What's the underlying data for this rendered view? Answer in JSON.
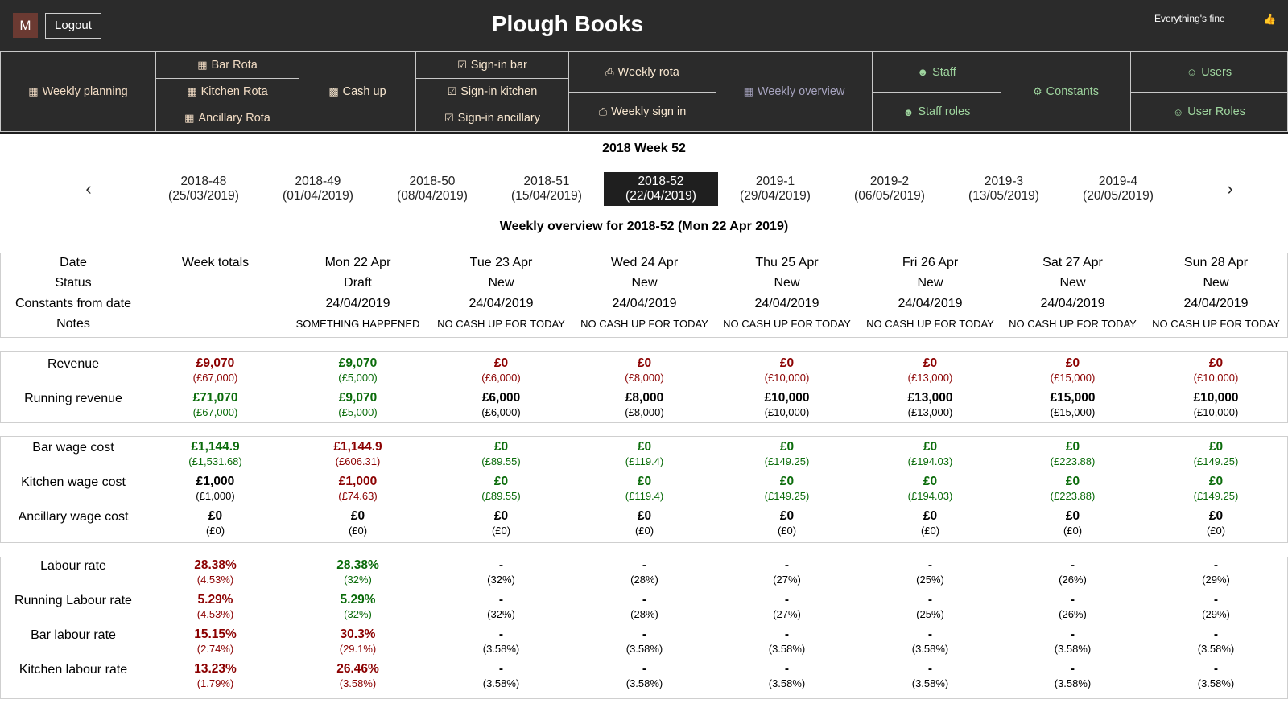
{
  "header": {
    "avatar_letter": "M",
    "logout_label": "Logout",
    "app_title": "Plough Books",
    "status_text": "Everything's fine",
    "status_icon": "thumbs-up-icon"
  },
  "nav": {
    "weekly_planning": "Weekly planning",
    "bar_rota": "Bar Rota",
    "kitchen_rota": "Kitchen Rota",
    "ancillary_rota": "Ancillary Rota",
    "cash_up": "Cash up",
    "sign_in_bar": "Sign-in bar",
    "sign_in_kitchen": "Sign-in kitchen",
    "sign_in_ancillary": "Sign-in ancillary",
    "weekly_rota": "Weekly rota",
    "weekly_sign_in": "Weekly sign in",
    "weekly_overview": "Weekly overview",
    "staff": "Staff",
    "staff_roles": "Staff roles",
    "constants": "Constants",
    "users": "Users",
    "user_roles": "User Roles"
  },
  "week_heading": "2018 Week 52",
  "weeks": [
    {
      "code": "2018-48",
      "date": "(25/03/2019)"
    },
    {
      "code": "2018-49",
      "date": "(01/04/2019)"
    },
    {
      "code": "2018-50",
      "date": "(08/04/2019)"
    },
    {
      "code": "2018-51",
      "date": "(15/04/2019)"
    },
    {
      "code": "2018-52",
      "date": "(22/04/2019)"
    },
    {
      "code": "2019-1",
      "date": "(29/04/2019)"
    },
    {
      "code": "2019-2",
      "date": "(06/05/2019)"
    },
    {
      "code": "2019-3",
      "date": "(13/05/2019)"
    },
    {
      "code": "2019-4",
      "date": "(20/05/2019)"
    }
  ],
  "active_week_index": 4,
  "overview_title": "Weekly overview for 2018-52 (Mon 22 Apr 2019)",
  "info": {
    "labels": [
      "Date",
      "Status",
      "Constants from date",
      "Notes"
    ],
    "columns": [
      {
        "date": "Week totals",
        "status": "",
        "constants": "",
        "notes": ""
      },
      {
        "date": "Mon 22 Apr",
        "status": "Draft",
        "constants": "24/04/2019",
        "notes": "SOMETHING HAPPENED"
      },
      {
        "date": "Tue 23 Apr",
        "status": "New",
        "constants": "24/04/2019",
        "notes": "NO CASH UP FOR TODAY"
      },
      {
        "date": "Wed 24 Apr",
        "status": "New",
        "constants": "24/04/2019",
        "notes": "NO CASH UP FOR TODAY"
      },
      {
        "date": "Thu 25 Apr",
        "status": "New",
        "constants": "24/04/2019",
        "notes": "NO CASH UP FOR TODAY"
      },
      {
        "date": "Fri 26 Apr",
        "status": "New",
        "constants": "24/04/2019",
        "notes": "NO CASH UP FOR TODAY"
      },
      {
        "date": "Sat 27 Apr",
        "status": "New",
        "constants": "24/04/2019",
        "notes": "NO CASH UP FOR TODAY"
      },
      {
        "date": "Sun 28 Apr",
        "status": "New",
        "constants": "24/04/2019",
        "notes": "NO CASH UP FOR TODAY"
      }
    ]
  },
  "revenue_rows": [
    {
      "label": "Revenue",
      "cells": [
        {
          "v": "£9,070",
          "s": "(£67,000)",
          "c": "red"
        },
        {
          "v": "£9,070",
          "s": "(£5,000)",
          "c": "grn"
        },
        {
          "v": "£0",
          "s": "(£6,000)",
          "c": "red"
        },
        {
          "v": "£0",
          "s": "(£8,000)",
          "c": "red"
        },
        {
          "v": "£0",
          "s": "(£10,000)",
          "c": "red"
        },
        {
          "v": "£0",
          "s": "(£13,000)",
          "c": "red"
        },
        {
          "v": "£0",
          "s": "(£15,000)",
          "c": "red"
        },
        {
          "v": "£0",
          "s": "(£10,000)",
          "c": "red"
        }
      ]
    },
    {
      "label": "Running revenue",
      "cells": [
        {
          "v": "£71,070",
          "s": "(£67,000)",
          "c": "grn"
        },
        {
          "v": "£9,070",
          "s": "(£5,000)",
          "c": "grn"
        },
        {
          "v": "£6,000",
          "s": "(£6,000)",
          "c": "blk"
        },
        {
          "v": "£8,000",
          "s": "(£8,000)",
          "c": "blk"
        },
        {
          "v": "£10,000",
          "s": "(£10,000)",
          "c": "blk"
        },
        {
          "v": "£13,000",
          "s": "(£13,000)",
          "c": "blk"
        },
        {
          "v": "£15,000",
          "s": "(£15,000)",
          "c": "blk"
        },
        {
          "v": "£10,000",
          "s": "(£10,000)",
          "c": "blk"
        }
      ]
    }
  ],
  "wage_rows": [
    {
      "label": "Bar wage cost",
      "cells": [
        {
          "v": "£1,144.9",
          "s": "(£1,531.68)",
          "c": "grn"
        },
        {
          "v": "£1,144.9",
          "s": "(£606.31)",
          "c": "red"
        },
        {
          "v": "£0",
          "s": "(£89.55)",
          "c": "grn"
        },
        {
          "v": "£0",
          "s": "(£119.4)",
          "c": "grn"
        },
        {
          "v": "£0",
          "s": "(£149.25)",
          "c": "grn"
        },
        {
          "v": "£0",
          "s": "(£194.03)",
          "c": "grn"
        },
        {
          "v": "£0",
          "s": "(£223.88)",
          "c": "grn"
        },
        {
          "v": "£0",
          "s": "(£149.25)",
          "c": "grn"
        }
      ]
    },
    {
      "label": "Kitchen wage cost",
      "cells": [
        {
          "v": "£1,000",
          "s": "(£1,000)",
          "c": "blk"
        },
        {
          "v": "£1,000",
          "s": "(£74.63)",
          "c": "red"
        },
        {
          "v": "£0",
          "s": "(£89.55)",
          "c": "grn"
        },
        {
          "v": "£0",
          "s": "(£119.4)",
          "c": "grn"
        },
        {
          "v": "£0",
          "s": "(£149.25)",
          "c": "grn"
        },
        {
          "v": "£0",
          "s": "(£194.03)",
          "c": "grn"
        },
        {
          "v": "£0",
          "s": "(£223.88)",
          "c": "grn"
        },
        {
          "v": "£0",
          "s": "(£149.25)",
          "c": "grn"
        }
      ]
    },
    {
      "label": "Ancillary wage cost",
      "cells": [
        {
          "v": "£0",
          "s": "(£0)",
          "c": "blk"
        },
        {
          "v": "£0",
          "s": "(£0)",
          "c": "blk"
        },
        {
          "v": "£0",
          "s": "(£0)",
          "c": "blk"
        },
        {
          "v": "£0",
          "s": "(£0)",
          "c": "blk"
        },
        {
          "v": "£0",
          "s": "(£0)",
          "c": "blk"
        },
        {
          "v": "£0",
          "s": "(£0)",
          "c": "blk"
        },
        {
          "v": "£0",
          "s": "(£0)",
          "c": "blk"
        },
        {
          "v": "£0",
          "s": "(£0)",
          "c": "blk"
        }
      ]
    }
  ],
  "labour_rows": [
    {
      "label": "Labour rate",
      "cells": [
        {
          "v": "28.38%",
          "s": "(4.53%)",
          "c": "red"
        },
        {
          "v": "28.38%",
          "s": "(32%)",
          "c": "grn"
        },
        {
          "v": "-",
          "s": "(32%)",
          "c": "blk"
        },
        {
          "v": "-",
          "s": "(28%)",
          "c": "blk"
        },
        {
          "v": "-",
          "s": "(27%)",
          "c": "blk"
        },
        {
          "v": "-",
          "s": "(25%)",
          "c": "blk"
        },
        {
          "v": "-",
          "s": "(26%)",
          "c": "blk"
        },
        {
          "v": "-",
          "s": "(29%)",
          "c": "blk"
        }
      ]
    },
    {
      "label": "Running Labour rate",
      "cells": [
        {
          "v": "5.29%",
          "s": "(4.53%)",
          "c": "red"
        },
        {
          "v": "5.29%",
          "s": "(32%)",
          "c": "grn"
        },
        {
          "v": "-",
          "s": "(32%)",
          "c": "blk"
        },
        {
          "v": "-",
          "s": "(28%)",
          "c": "blk"
        },
        {
          "v": "-",
          "s": "(27%)",
          "c": "blk"
        },
        {
          "v": "-",
          "s": "(25%)",
          "c": "blk"
        },
        {
          "v": "-",
          "s": "(26%)",
          "c": "blk"
        },
        {
          "v": "-",
          "s": "(29%)",
          "c": "blk"
        }
      ]
    },
    {
      "label": "Bar labour rate",
      "cells": [
        {
          "v": "15.15%",
          "s": "(2.74%)",
          "c": "red"
        },
        {
          "v": "30.3%",
          "s": "(29.1%)",
          "c": "red"
        },
        {
          "v": "-",
          "s": "(3.58%)",
          "c": "blk"
        },
        {
          "v": "-",
          "s": "(3.58%)",
          "c": "blk"
        },
        {
          "v": "-",
          "s": "(3.58%)",
          "c": "blk"
        },
        {
          "v": "-",
          "s": "(3.58%)",
          "c": "blk"
        },
        {
          "v": "-",
          "s": "(3.58%)",
          "c": "blk"
        },
        {
          "v": "-",
          "s": "(3.58%)",
          "c": "blk"
        }
      ]
    },
    {
      "label": "Kitchen labour rate",
      "cells": [
        {
          "v": "13.23%",
          "s": "(1.79%)",
          "c": "red"
        },
        {
          "v": "26.46%",
          "s": "(3.58%)",
          "c": "red"
        },
        {
          "v": "-",
          "s": "(3.58%)",
          "c": "blk"
        },
        {
          "v": "-",
          "s": "(3.58%)",
          "c": "blk"
        },
        {
          "v": "-",
          "s": "(3.58%)",
          "c": "blk"
        },
        {
          "v": "-",
          "s": "(3.58%)",
          "c": "blk"
        },
        {
          "v": "-",
          "s": "(3.58%)",
          "c": "blk"
        },
        {
          "v": "-",
          "s": "(3.58%)",
          "c": "blk"
        }
      ]
    }
  ],
  "colors": {
    "header_bg": "#2b2b2b",
    "positive": "#0a6b0a",
    "negative": "#8b0000"
  }
}
